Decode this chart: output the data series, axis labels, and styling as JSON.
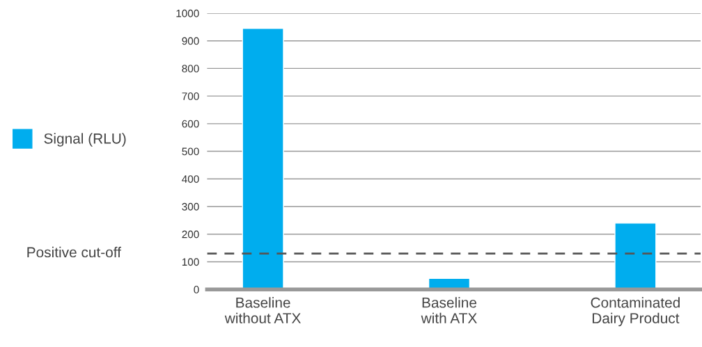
{
  "chart_data": {
    "type": "bar",
    "categories": [
      "Baseline\nwithout ATX",
      "Baseline\nwith ATX",
      "Contaminated\nDairy Product"
    ],
    "series": [
      {
        "name": "Signal (RLU)",
        "color": "#00adee",
        "values": [
          945,
          40,
          240
        ]
      }
    ],
    "ylim": [
      0,
      1000
    ],
    "yticks": [
      0,
      100,
      200,
      300,
      400,
      500,
      600,
      700,
      800,
      900,
      1000
    ],
    "grid": "y",
    "legend": "left",
    "ref_lines": [
      {
        "axis": "y",
        "value": 130,
        "label": "Positive cut-off",
        "color": "#555555",
        "line_style": "dashed"
      }
    ]
  }
}
